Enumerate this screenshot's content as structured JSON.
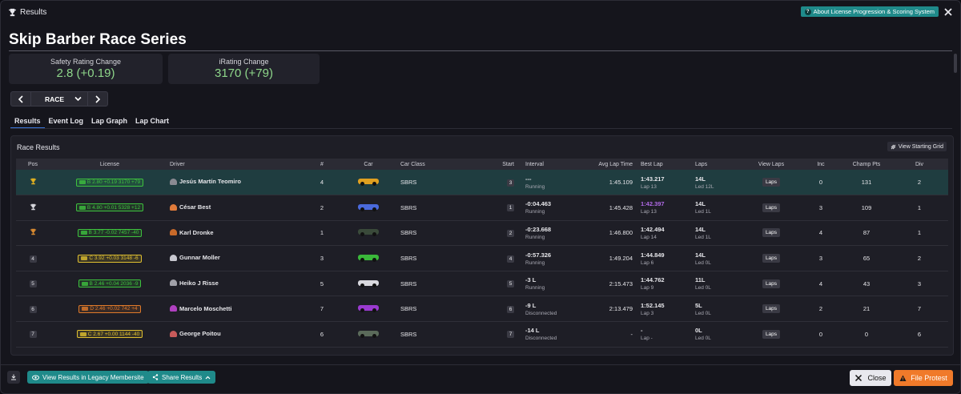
{
  "window": {
    "title": "Results",
    "help_badge": "About License Progression & Scoring System"
  },
  "header": {
    "series_title": "Skip Barber Race Series"
  },
  "stats": {
    "safety_label": "Safety Rating Change",
    "safety_value": "2.8 (+0.19)",
    "irating_label": "iRating Change",
    "irating_value": "3170 (+79)"
  },
  "session": {
    "selected": "RACE"
  },
  "tabs": [
    "Results",
    "Event Log",
    "Lap Graph",
    "Lap Chart"
  ],
  "results": {
    "panel_title": "Race Results",
    "starting_grid_label": "View Starting Grid",
    "columns": [
      "Pos",
      "License",
      "Driver",
      "#",
      "Car",
      "Car Class",
      "Start",
      "Interval",
      "Avg Lap Time",
      "Best Lap",
      "Laps",
      "View Laps",
      "Inc",
      "Champ Pts",
      "Div"
    ],
    "laps_button": "Laps",
    "rows": [
      {
        "pos": "1",
        "trophy": "gold",
        "license": "B 2.80 +0.19 3170 +79",
        "lic_class": "B",
        "driver": "Jesús Martín Teomiro",
        "helmet": "#8a8a92",
        "num": "4",
        "car_color": "#e0a020",
        "car_class": "SBRS",
        "start": "3",
        "interval": "---",
        "status": "Running",
        "avg": "1:45.109",
        "best": "1:43.217",
        "best_lap": "Lap 13",
        "best_purple": false,
        "laps": "14L",
        "led": "Led 12L",
        "inc": "0",
        "champ": "131",
        "div": "2"
      },
      {
        "pos": "2",
        "trophy": "silver",
        "license": "B 4.80 +0.01 5328 +12",
        "lic_class": "B",
        "driver": "César Best",
        "helmet": "#e07a3a",
        "num": "2",
        "car_color": "#4a6adc",
        "car_class": "SBRS",
        "start": "1",
        "interval": "-0:04.463",
        "status": "Running",
        "avg": "1:45.428",
        "best": "1:42.397",
        "best_lap": "Lap 13",
        "best_purple": true,
        "laps": "14L",
        "led": "Led 1L",
        "inc": "3",
        "champ": "109",
        "div": "1"
      },
      {
        "pos": "3",
        "trophy": "bronze",
        "license": "B 3.77 -0.02 7457 -40",
        "lic_class": "B",
        "driver": "Karl Dronke",
        "helmet": "#c86a2a",
        "num": "1",
        "car_color": "#3a4a3a",
        "car_class": "SBRS",
        "start": "2",
        "interval": "-0:23.668",
        "status": "Running",
        "avg": "1:46.800",
        "best": "1:42.494",
        "best_lap": "Lap 14",
        "best_purple": false,
        "laps": "14L",
        "led": "Led 1L",
        "inc": "4",
        "champ": "87",
        "div": "1"
      },
      {
        "pos": "4",
        "trophy": "",
        "license": "C 3.92 +0.03 3148 -6",
        "lic_class": "C",
        "driver": "Gunnar Moller",
        "helmet": "#c8c8d0",
        "num": "3",
        "car_color": "#3ab83a",
        "car_class": "SBRS",
        "start": "4",
        "interval": "-0:57.326",
        "status": "Running",
        "avg": "1:49.204",
        "best": "1:44.849",
        "best_lap": "Lap 6",
        "best_purple": false,
        "laps": "14L",
        "led": "Led 0L",
        "inc": "3",
        "champ": "65",
        "div": "2"
      },
      {
        "pos": "5",
        "trophy": "",
        "license": "B 2.46 +0.04 2036 -9",
        "lic_class": "B",
        "driver": "Heiko J Risse",
        "helmet": "#a0a0a8",
        "num": "5",
        "car_color": "#d8d8de",
        "car_class": "SBRS",
        "start": "5",
        "interval": "-3 L",
        "status": "Running",
        "avg": "2:15.473",
        "best": "1:44.762",
        "best_lap": "Lap 9",
        "best_purple": false,
        "laps": "11L",
        "led": "Led 0L",
        "inc": "4",
        "champ": "43",
        "div": "3"
      },
      {
        "pos": "6",
        "trophy": "",
        "license": "D 2.46 +0.02 742 +4",
        "lic_class": "D",
        "driver": "Marcelo Moschetti",
        "helmet": "#b040c0",
        "num": "7",
        "car_color": "#9a3ad0",
        "car_class": "SBRS",
        "start": "6",
        "interval": "-9 L",
        "status": "Disconnected",
        "avg": "2:13.479",
        "best": "1:52.145",
        "best_lap": "Lap 3",
        "best_purple": false,
        "laps": "5L",
        "led": "Led 0L",
        "inc": "2",
        "champ": "21",
        "div": "7"
      },
      {
        "pos": "7",
        "trophy": "",
        "license": "C 2.67 +0.00 1144 -40",
        "lic_class": "C",
        "driver": "George Poitou",
        "helmet": "#c85a5a",
        "num": "6",
        "car_color": "#5a6a5a",
        "car_class": "SBRS",
        "start": "7",
        "interval": "-14 L",
        "status": "Disconnected",
        "avg": "-",
        "best": "-",
        "best_lap": "Lap -",
        "best_purple": false,
        "laps": "0L",
        "led": "Led 0L",
        "inc": "0",
        "champ": "0",
        "div": "6"
      }
    ]
  },
  "footer": {
    "legacy_label": "View Results in Legacy Membersite",
    "share_label": "Share Results",
    "close_label": "Close",
    "protest_label": "File Protest"
  },
  "colors": {
    "accent_teal": "#1f8a8a",
    "protest_orange": "#f07a2a",
    "green_value": "#8ed68a",
    "purple_best": "#b06ae6",
    "highlight_row": "#1f3d40",
    "license_B": "#3ec23e",
    "license_C": "#e0c030",
    "license_D": "#e07a2a"
  },
  "icons": {
    "title": "trophy-icon",
    "help": "question-icon",
    "close": "close-icon",
    "grid": "grid-icon",
    "download": "download-icon",
    "protest": "warning-icon"
  }
}
